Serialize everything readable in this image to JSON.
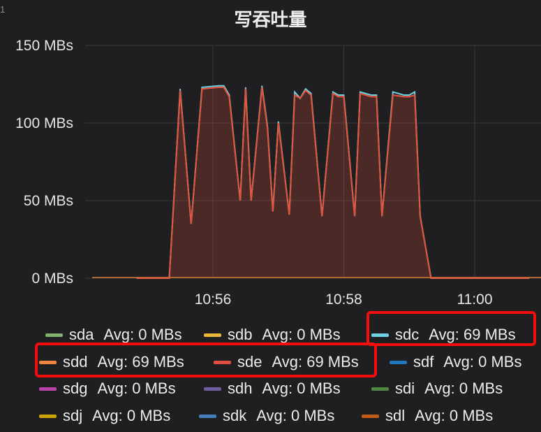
{
  "chart_data": {
    "type": "area",
    "title": "写吞吐量",
    "y_unit": "MBs",
    "ylim": [
      0,
      150
    ],
    "yticks": [
      {
        "value": 0,
        "label": "0 MBs"
      },
      {
        "value": 50,
        "label": "50 MBs"
      },
      {
        "value": 100,
        "label": "100 MBs"
      },
      {
        "value": 150,
        "label": "150 MBs"
      }
    ],
    "xlim": [
      "10:54:50",
      "11:00:50"
    ],
    "xticks": [
      {
        "value": "10:56",
        "label": "10:56"
      },
      {
        "value": "10:58",
        "label": "10:58"
      },
      {
        "value": "11:00",
        "label": "11:00"
      }
    ],
    "grid": true,
    "legend_position": "bottom",
    "series": [
      {
        "name": "sda",
        "color": "#7eb26d",
        "avg": "Avg: 0 MBs"
      },
      {
        "name": "sdb",
        "color": "#eab839",
        "avg": "Avg: 0 MBs"
      },
      {
        "name": "sdc",
        "color": "#6ed0e0",
        "avg": "Avg: 69 MBs"
      },
      {
        "name": "sdd",
        "color": "#ef843c",
        "avg": "Avg: 69 MBs"
      },
      {
        "name": "sde",
        "color": "#e24d42",
        "avg": "Avg: 69 MBs"
      },
      {
        "name": "sdf",
        "color": "#1f78c1",
        "avg": "Avg: 0 MBs"
      },
      {
        "name": "sdg",
        "color": "#ba43a9",
        "avg": "Avg: 0 MBs"
      },
      {
        "name": "sdh",
        "color": "#705da0",
        "avg": "Avg: 0 MBs"
      },
      {
        "name": "sdi",
        "color": "#508642",
        "avg": "Avg: 0 MBs"
      },
      {
        "name": "sdj",
        "color": "#cca300",
        "avg": "Avg: 0 MBs"
      },
      {
        "name": "sdk",
        "color": "#447ebc",
        "avg": "Avg: 0 MBs"
      },
      {
        "name": "sdl",
        "color": "#c15c17",
        "avg": "Avg: 0 MBs"
      }
    ],
    "active_series": {
      "names": [
        "sdc",
        "sdd",
        "sde"
      ],
      "x": [
        "10:54:50",
        "10:55:20",
        "10:55:30",
        "10:55:40",
        "10:55:50",
        "10:56:05",
        "10:56:10",
        "10:56:15",
        "10:56:25",
        "10:56:30",
        "10:56:35",
        "10:56:45",
        "10:56:50",
        "10:56:55",
        "10:57:00",
        "10:57:10",
        "10:57:15",
        "10:57:20",
        "10:57:25",
        "10:57:30",
        "10:57:40",
        "10:57:50",
        "10:57:55",
        "10:58:00",
        "10:58:10",
        "10:58:15",
        "10:58:25",
        "10:58:30",
        "10:58:35",
        "10:58:45",
        "10:58:55",
        "10:59:00",
        "10:59:05",
        "10:59:10",
        "10:59:20",
        "10:59:25",
        "10:59:30",
        "10:59:35",
        "10:59:45",
        "10:59:50",
        "10:59:55",
        "11:00:00",
        "11:00:50"
      ],
      "sdc": [
        0,
        0,
        122,
        35,
        123,
        124,
        124,
        118,
        50,
        123,
        50,
        124,
        98,
        43,
        101,
        41,
        120,
        116,
        122,
        119,
        40,
        120,
        118,
        118,
        40,
        120,
        118,
        118,
        40,
        120,
        118,
        118,
        120,
        40,
        0,
        0,
        0,
        0,
        0,
        0,
        0,
        0,
        0
      ],
      "sde": [
        0,
        0,
        121,
        35,
        122,
        123,
        123,
        117,
        50,
        122,
        50,
        123,
        97,
        43,
        100,
        41,
        118,
        116,
        121,
        118,
        40,
        119,
        117,
        117,
        40,
        119,
        117,
        117,
        40,
        118,
        117,
        117,
        118,
        40,
        0,
        0,
        0,
        0,
        0,
        0,
        0,
        0,
        0
      ]
    }
  },
  "annotations": {
    "edge_glyph": "1",
    "highlight_boxes": [
      "sdc-highlight",
      "sdd-sde-highlight"
    ]
  }
}
